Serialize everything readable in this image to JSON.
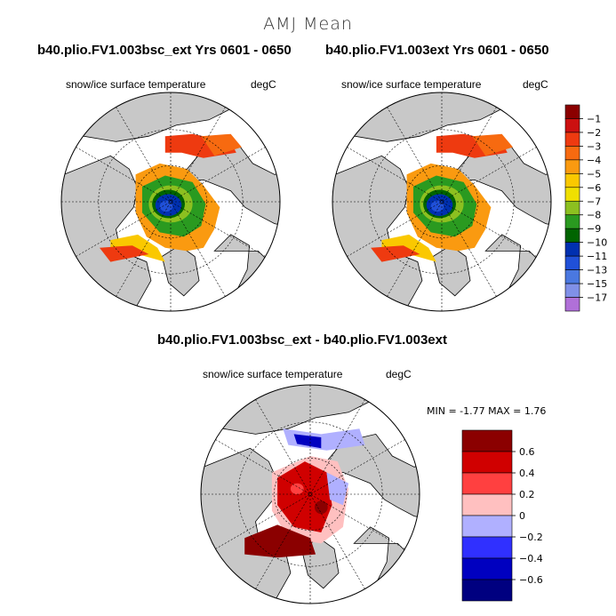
{
  "main_title": "AMJ Mean",
  "panels": [
    {
      "title": "b40.plio.FV1.003bsc_ext  Yrs 0601 - 0650",
      "variable": "snow/ice surface temperature",
      "units": "degC"
    },
    {
      "title": "b40.plio.FV1.003ext  Yrs 0601 - 0650",
      "variable": "snow/ice surface temperature",
      "units": "degC"
    },
    {
      "title": "b40.plio.FV1.003bsc_ext - b40.plio.FV1.003ext",
      "variable": "snow/ice surface temperature",
      "units": "degC",
      "stats": "MIN =   -1.77 MAX =    1.76"
    }
  ],
  "chart_data": [
    {
      "type": "heatmap",
      "projection": "north polar stereographic",
      "title": "b40.plio.FV1.003bsc_ext  Yrs 0601 - 0650",
      "variable": "snow/ice surface temperature",
      "units": "degC",
      "colorbar": {
        "tick_labels": [
          "-1",
          "-2",
          "-3",
          "-4",
          "-5",
          "-6",
          "-7",
          "-8",
          "-9",
          "-10",
          "-11",
          "-13",
          "-15",
          "-17"
        ],
        "colors": [
          "#8b0000",
          "#cc1010",
          "#ee3a10",
          "#f76a10",
          "#fa9a10",
          "#fac800",
          "#f0e000",
          "#8cc020",
          "#2a9a20",
          "#006400",
          "#0030b0",
          "#2050d8",
          "#4a78e0",
          "#8090e8",
          "#b070d8"
        ]
      }
    },
    {
      "type": "heatmap",
      "projection": "north polar stereographic",
      "title": "b40.plio.FV1.003ext  Yrs 0601 - 0650",
      "variable": "snow/ice surface temperature",
      "units": "degC"
    },
    {
      "type": "heatmap",
      "projection": "north polar stereographic",
      "title": "b40.plio.FV1.003bsc_ext - b40.plio.FV1.003ext",
      "variable": "snow/ice surface temperature",
      "units": "degC",
      "min": -1.77,
      "max": 1.76,
      "colorbar": {
        "tick_labels": [
          "0.6",
          "0.4",
          "0.2",
          "0",
          "-0.2",
          "-0.4",
          "-0.6"
        ],
        "colors": [
          "#8b0000",
          "#d00000",
          "#ff4040",
          "#ffc0c0",
          "#b0b0ff",
          "#3030ff",
          "#0000c0",
          "#000080"
        ]
      }
    }
  ],
  "colors": {
    "land": "#c8c8c8",
    "ocean": "#ffffff"
  }
}
